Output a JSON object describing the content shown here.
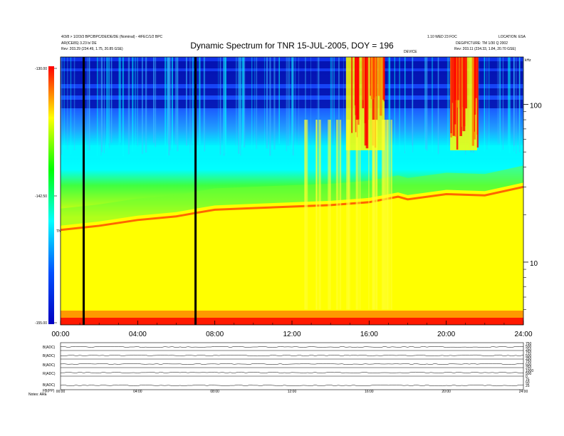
{
  "header": {
    "top_left_line1": "4/3/8 > 1/2/3/3 BPC/BPC/DE/DE/DE (Nominal) - 4/FEC/1/2 BPC",
    "top_left_line2": "AR(ICE8S) 3.23 b/ DE",
    "top_left_line3": "Rev: 203.29 (234.49, 1.75, 20.85 GSE)",
    "title": "Dynamic Spectrum for TNR 15-JUL-2005, DOY = 196",
    "top_right_line1": "1.10 WED 23 FOC",
    "top_right_line2": "LOCATION: ESA",
    "top_right_line3": "DEG/PICTURE: TM 1/30 Q 2002",
    "top_right_line4": "Rev: 203.11 (234.33, 1.84, 20.70 GSE)",
    "mid_label": "DEVICE",
    "right_unit": "kHz"
  },
  "chart_data": {
    "type": "heatmap",
    "title": "Dynamic Spectrum for TNR 15-JUL-2005, DOY = 196",
    "x_ticks": [
      "00:00",
      "04:00",
      "08:00",
      "12:00",
      "16:00",
      "20:00",
      "24:00"
    ],
    "x_range_hours": [
      0,
      24
    ],
    "y_scale": "log",
    "y_range_khz": [
      4,
      200
    ],
    "y_ticks_major": [
      10,
      100
    ],
    "y_ticks_minor": [
      5,
      6,
      7,
      8,
      9,
      20,
      30,
      40,
      50,
      60,
      70,
      80,
      90
    ],
    "colorbar": {
      "label": "TNR",
      "ticks": [
        "-130.00",
        "-142.50",
        "-155.00"
      ],
      "range": [
        -155,
        -130
      ],
      "colors": [
        "#0000c0",
        "#0050ff",
        "#00ffff",
        "#00ff00",
        "#ffff00",
        "#ff0000"
      ]
    },
    "data_gaps_hours": [
      1.2,
      7.0
    ],
    "background_emission_khz_vs_hour": [
      [
        0,
        16
      ],
      [
        2,
        17
      ],
      [
        4,
        18.5
      ],
      [
        6,
        19.5
      ],
      [
        7,
        20.5
      ],
      [
        8,
        21.5
      ],
      [
        10,
        22
      ],
      [
        12,
        22.5
      ],
      [
        14,
        23
      ],
      [
        16,
        24
      ],
      [
        17.5,
        26
      ],
      [
        18,
        25
      ],
      [
        20,
        27
      ],
      [
        22,
        26.5
      ],
      [
        24,
        30
      ]
    ],
    "bursts": [
      {
        "hour_start": 14.8,
        "hour_end": 16.8,
        "freq_khz_min": 70,
        "freq_khz_max": 200
      },
      {
        "hour_start": 20.2,
        "hour_end": 21.6,
        "freq_khz_min": 70,
        "freq_khz_max": 200
      }
    ]
  },
  "panels": {
    "labels": [
      "B(ADC)",
      "B(ADC)",
      "B(ADC)",
      "R(ADC)",
      "B(ADC)"
    ],
    "extra_label": "FB(PP)",
    "right_values": [
      "750",
      "500",
      "250",
      "750",
      "500",
      "250",
      "750",
      "500",
      "250",
      "1000",
      "500",
      "0",
      "75",
      "50",
      "25"
    ],
    "bottom_ticks": [
      "00:00",
      "04:00",
      "08:00",
      "12:00",
      "16:00",
      "20:00",
      "24:00"
    ],
    "footer": "Notes: ARE"
  }
}
